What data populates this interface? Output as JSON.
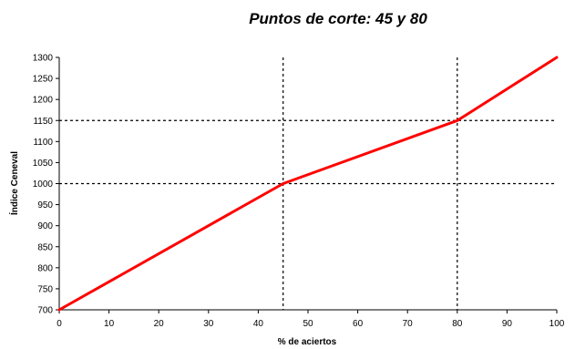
{
  "chart_data": {
    "type": "line",
    "title": "Puntos de corte: 45 y 80",
    "xlabel": "% de aciertos",
    "ylabel": "Índice Ceneval",
    "xlim": [
      0,
      100
    ],
    "ylim": [
      700,
      1300
    ],
    "x_ticks": [
      0,
      10,
      20,
      30,
      40,
      50,
      60,
      70,
      80,
      90,
      100
    ],
    "y_ticks": [
      700,
      750,
      800,
      850,
      900,
      950,
      1000,
      1050,
      1100,
      1150,
      1200,
      1250,
      1300
    ],
    "grid": false,
    "legend": "none",
    "series": [
      {
        "color": "#ff0000",
        "x": [
          0,
          45,
          80,
          100
        ],
        "y": [
          700,
          1000,
          1150,
          1300
        ]
      }
    ],
    "reference_lines": {
      "vertical_x": [
        45,
        80
      ],
      "horizontal_y": [
        1000,
        1150
      ]
    },
    "colors": {
      "line": "#ff0000",
      "reference": "#000000",
      "axis": "#000000"
    }
  }
}
